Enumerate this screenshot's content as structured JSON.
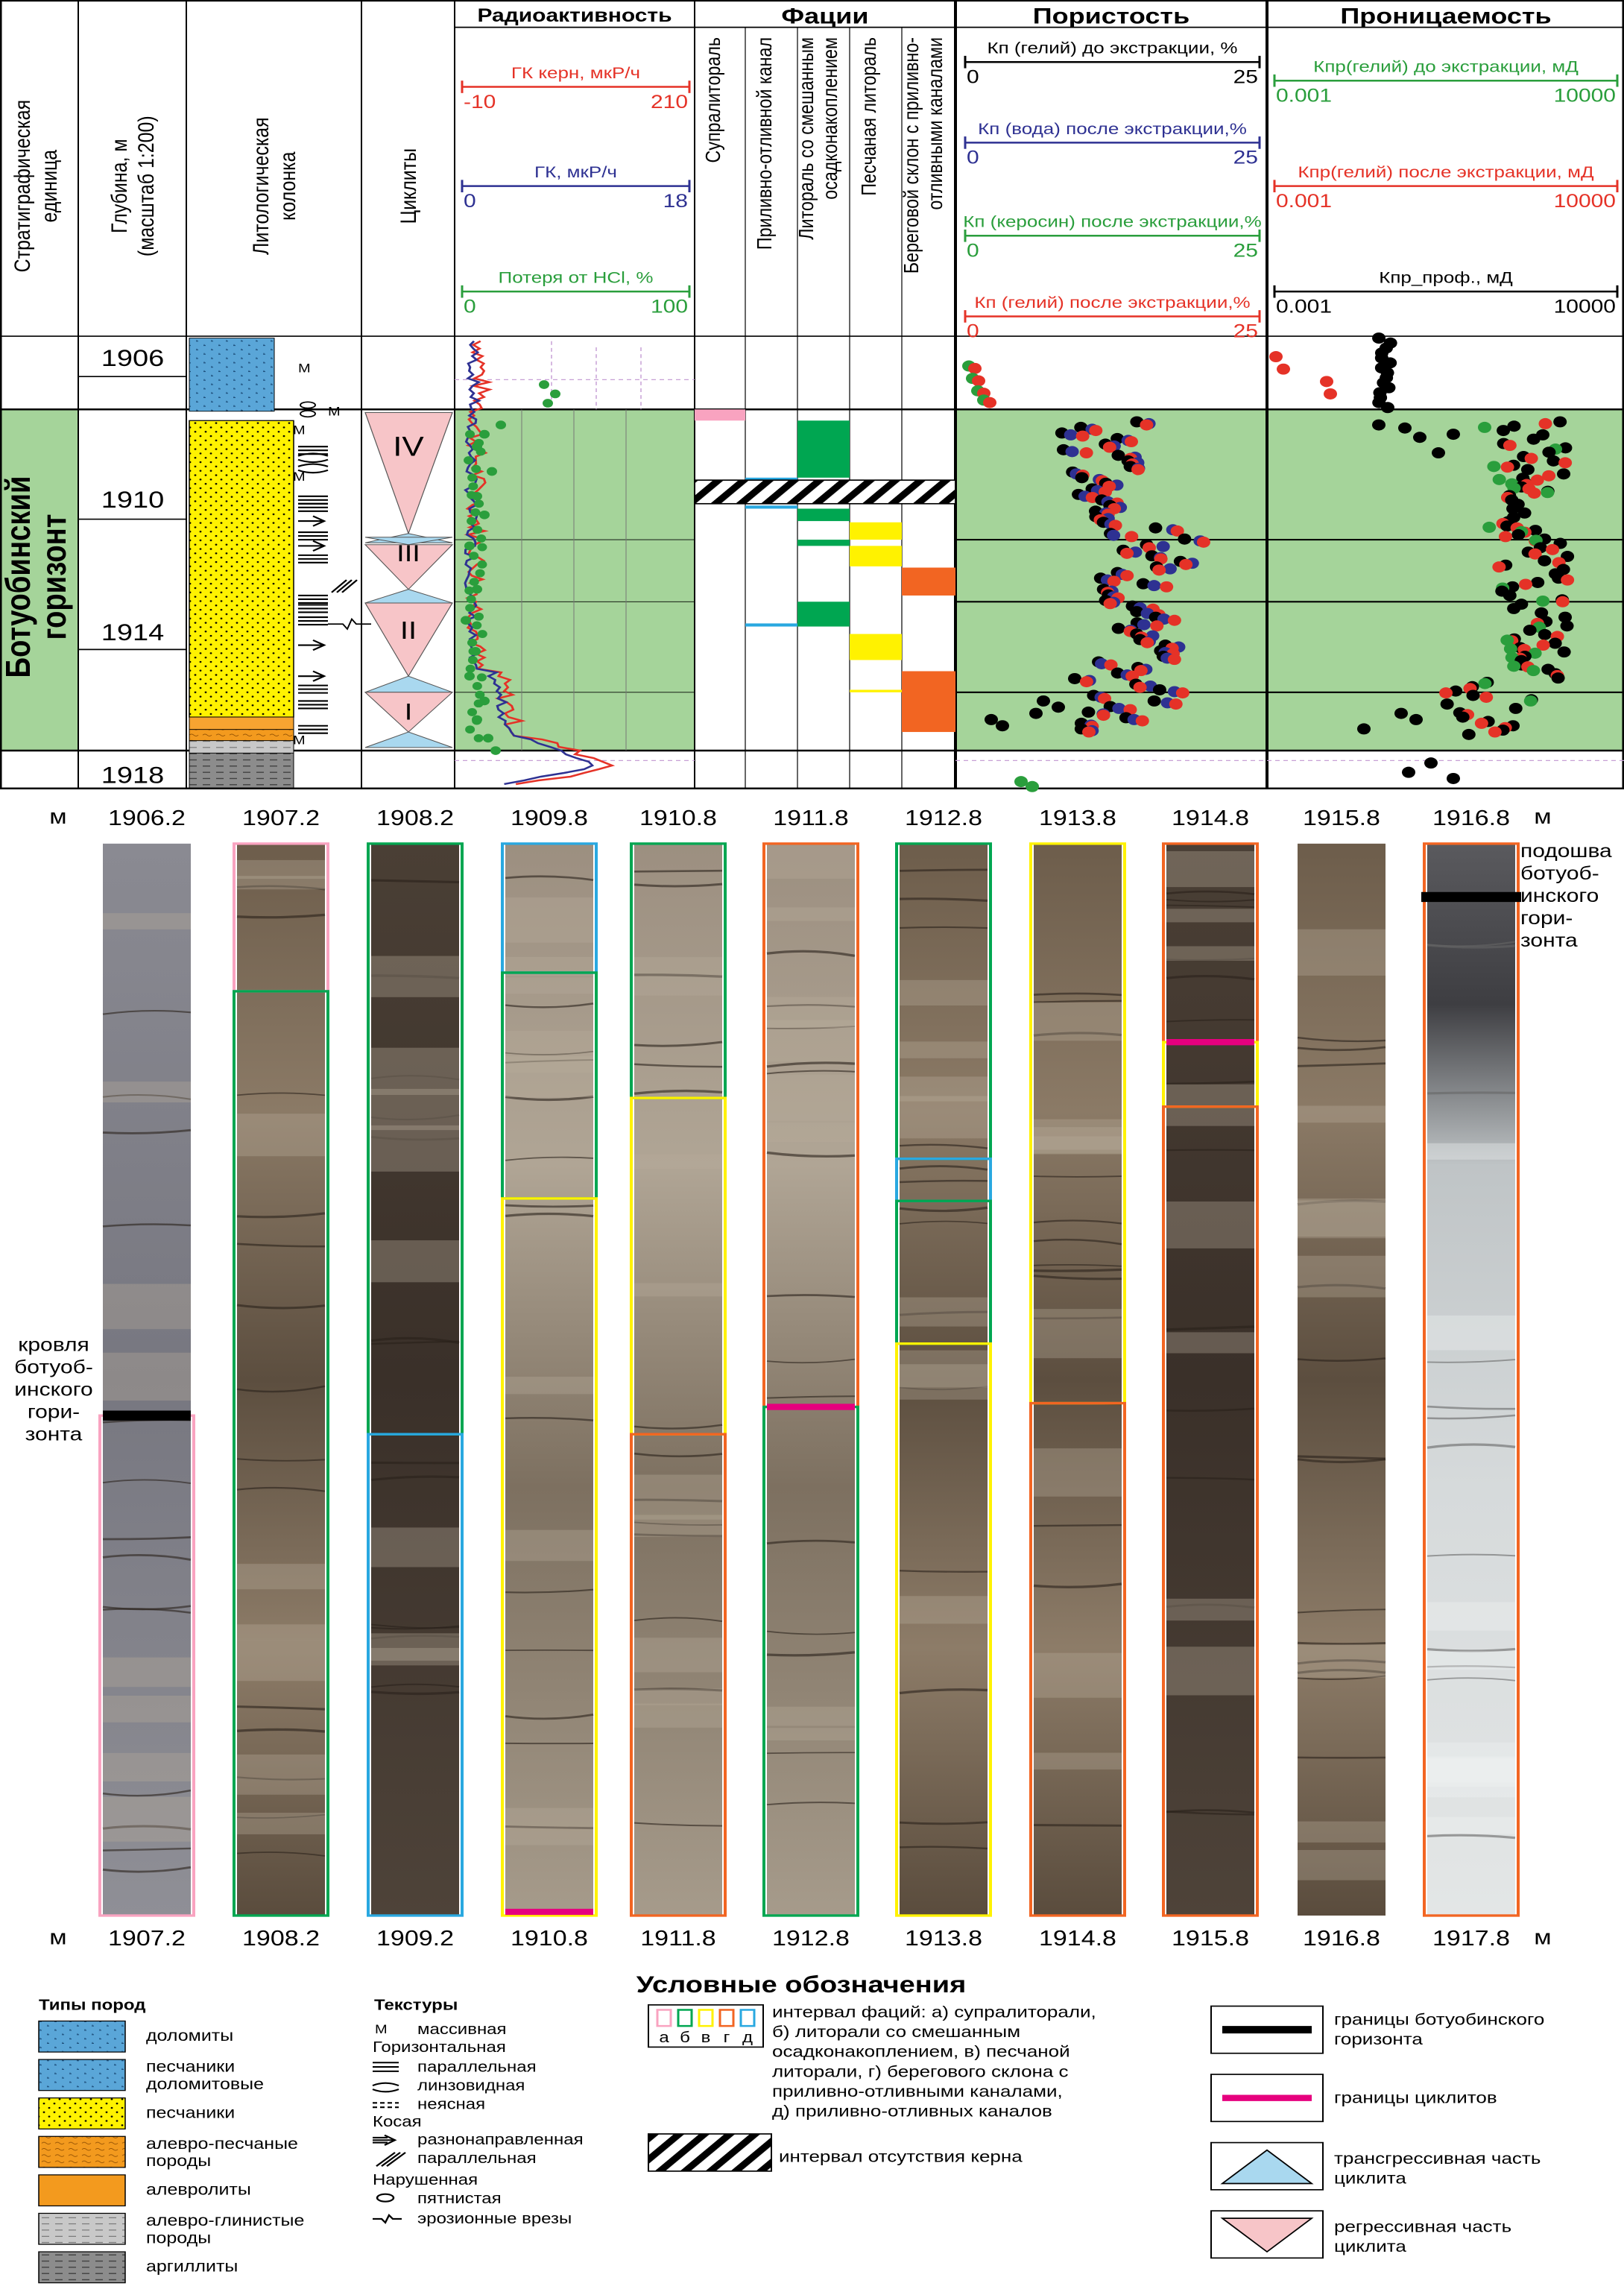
{
  "header": {
    "strat_unit": [
      "Стратиграфическая",
      "единица"
    ],
    "depth": [
      "Глубина, м",
      "(масштаб 1:200)"
    ],
    "litho": [
      "Литологическая",
      "колонка"
    ],
    "cyclites": "Циклиты",
    "radio": "Радиоактивность",
    "facies": "Фации",
    "porosity": "Пористость",
    "permeability": "Проницаемость"
  },
  "radio_scales": [
    {
      "label": "ГК керн, мкР/ч",
      "min": "-10",
      "max": "210",
      "color": "#e53227"
    },
    {
      "label": "ГК, мкР/ч",
      "min": "0",
      "max": "18",
      "color": "#2e3192"
    },
    {
      "label": "Потеря от HCl, %",
      "min": "0",
      "max": "100",
      "color": "#2a9e3c"
    }
  ],
  "facies_cols": [
    [
      "Супралитораль"
    ],
    [
      "Приливно-отливной канал"
    ],
    [
      "Литораль со смешанным",
      "осадконакоплением"
    ],
    [
      "Песчаная литораль"
    ],
    [
      "Береговой склон с приливно-",
      "отливными каналами"
    ]
  ],
  "poro_scales": [
    {
      "label": "Кп (гелий) до экстракции, %",
      "min": "0",
      "max": "25",
      "color": "#000000"
    },
    {
      "label": "Кп (вода) после экстракции,%",
      "min": "0",
      "max": "25",
      "color": "#2e3192"
    },
    {
      "label": "Кп (керосин) после экстракции,%",
      "min": "0",
      "max": "25",
      "color": "#2a9e3c"
    },
    {
      "label": "Кп (гелий) после экстракции,%",
      "min": "0",
      "max": "25",
      "color": "#e53227"
    }
  ],
  "perm_scales": [
    {
      "label": "Кпр(гелий) до экстракции, мД",
      "min": "0.001",
      "max": "10000",
      "color": "#2a9e3c"
    },
    {
      "label": "Кпр(гелий) после экстракции, мД",
      "min": "0.001",
      "max": "10000",
      "color": "#e53227"
    },
    {
      "label": "Кпр_проф., мД",
      "min": "0.001",
      "max": "10000",
      "color": "#000000"
    }
  ],
  "horizon_label": [
    "Ботуобинский",
    "горизонт"
  ],
  "depth_labels": [
    "1906",
    "1910",
    "1914",
    "1918"
  ],
  "cyclite_labels": [
    "IV",
    "III",
    "II",
    "I"
  ],
  "core": {
    "unit": "м",
    "top_depths": [
      "1906.2",
      "1907.2",
      "1908.2",
      "1909.8",
      "1910.8",
      "1911.8",
      "1912.8",
      "1913.8",
      "1914.8",
      "1915.8",
      "1916.8"
    ],
    "bottom_depths": [
      "1907.2",
      "1908.2",
      "1909.2",
      "1910.8",
      "1911.8",
      "1912.8",
      "1913.8",
      "1914.8",
      "1915.8",
      "1916.8",
      "1917.8"
    ],
    "roof_label": [
      "кровля",
      "ботуоб-",
      "инского",
      "гори-",
      "зонта"
    ],
    "sole_label": [
      "подошва",
      "ботуоб-",
      "инского",
      "гори-",
      "зонта"
    ]
  },
  "legend": {
    "title": "Условные обозначения",
    "rock_title": "Типы пород",
    "rocks": [
      [
        "доломиты"
      ],
      [
        "песчаники",
        "доломитовые"
      ],
      [
        "песчаники"
      ],
      [
        "алевро-песчаные",
        "породы"
      ],
      [
        "алевролиты"
      ],
      [
        "алевро-глинистые",
        "породы"
      ],
      [
        "аргиллиты"
      ]
    ],
    "texture_title": "Текстуры",
    "textures": {
      "massive_symbol": "М",
      "massive": "массивная",
      "horizontal": "Горизонтальная",
      "parallel": "параллельная",
      "lenticular": "линзовидная",
      "indistinct": "неясная",
      "cross": "Косая",
      "multidir": "разнонаправленная",
      "cross_parallel": "параллельная",
      "disturbed": "Нарушенная",
      "spotted": "пятнистая",
      "erosion": "эрозионные врезы"
    },
    "facies_letters": [
      "а",
      "б",
      "в",
      "г",
      "д"
    ],
    "facies_text": [
      "интервал фаций: а) супралиторали,",
      "б) литорали со смешанным",
      "осадконакоплением, в) песчаной",
      "литорали, г) берегового склона с",
      "приливно-отливными каналами,",
      "д) приливно-отливных каналов"
    ],
    "no_core": "интервал отсутствия керна",
    "boundary_horizon": [
      "границы ботуобинского",
      "горизонта"
    ],
    "boundary_cyclite": "границы циклитов",
    "transgressive": [
      "трансгрессивная часть",
      "циклита"
    ],
    "regressive": [
      "регрессивная часть",
      "циклита"
    ]
  },
  "colors": {
    "green_band": "#a5d49a",
    "sand": "#fff200",
    "dolomite": "#5aa6d8",
    "siltsand": "#f7a431",
    "silt": "#f39a1e",
    "clay": "#c8c8c8",
    "argillite": "#8c8c8c",
    "regressive": "#f7c5c8",
    "transgressive": "#a9d8ef",
    "red": "#e53227",
    "blue": "#2e3192",
    "green": "#2a9e3c",
    "pink": "#e6007e",
    "facies_a": "#f9a3c0",
    "facies_b": "#00a651",
    "facies_v": "#fff200",
    "facies_g": "#f26522",
    "facies_d": "#29a8e0"
  }
}
